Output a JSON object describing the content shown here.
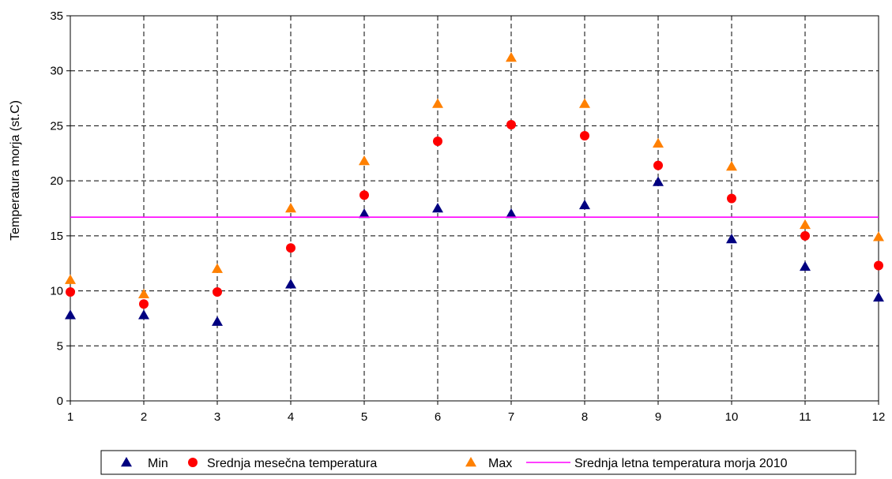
{
  "chart_data": {
    "type": "scatter",
    "title": "",
    "xlabel": "",
    "ylabel": "Temperatura morja (st.C)",
    "x": [
      1,
      2,
      3,
      4,
      5,
      6,
      7,
      8,
      9,
      10,
      11,
      12
    ],
    "xlim": [
      1,
      12
    ],
    "ylim": [
      0,
      35
    ],
    "y_ticks": [
      0,
      5,
      10,
      15,
      20,
      25,
      30,
      35
    ],
    "grid": true,
    "legend_position": "bottom",
    "series": [
      {
        "name": "Min",
        "marker": "triangle",
        "color": "#000080",
        "values": [
          7.8,
          7.8,
          7.2,
          10.6,
          17.0,
          17.5,
          17.0,
          17.8,
          19.9,
          14.7,
          12.2,
          9.4
        ]
      },
      {
        "name": "Srednja mesečna temperatura",
        "marker": "circle",
        "color": "#ff0000",
        "values": [
          9.9,
          8.8,
          9.9,
          13.9,
          18.7,
          23.6,
          25.1,
          24.1,
          21.4,
          18.4,
          15.0,
          12.3
        ]
      },
      {
        "name": "Max",
        "marker": "triangle",
        "color": "#ff8000",
        "values": [
          11.0,
          9.7,
          12.0,
          17.5,
          21.8,
          27.0,
          31.2,
          27.0,
          23.4,
          21.3,
          16.0,
          14.9
        ]
      },
      {
        "name": "Srednja letna temperatura morja 2010",
        "marker": "line",
        "color": "#ff00ff",
        "values": [
          16.7
        ]
      }
    ]
  }
}
